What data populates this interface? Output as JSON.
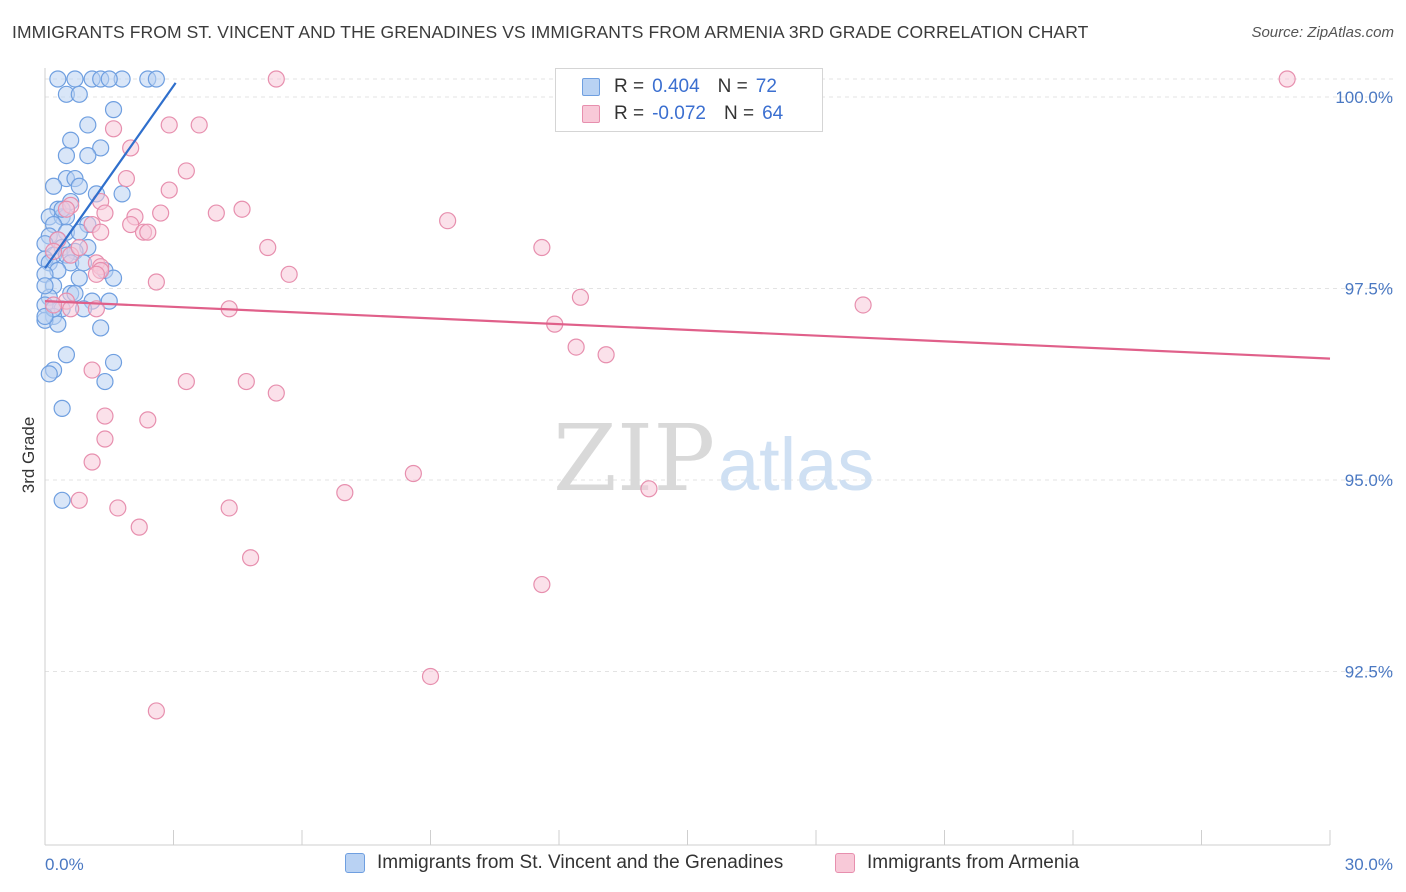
{
  "title": "IMMIGRANTS FROM ST. VINCENT AND THE GRENADINES VS IMMIGRANTS FROM ARMENIA 3RD GRADE CORRELATION CHART",
  "source": "Source: ZipAtlas.com",
  "watermark": {
    "zip": "ZIP",
    "atlas": "atlas"
  },
  "legend": {
    "r_label": "R =",
    "n_label": "N =",
    "rows": [
      {
        "r": "0.404",
        "n": "72",
        "color": "#6f9fe0",
        "fill": "#b9d2f3"
      },
      {
        "r": "-0.072",
        "n": "64",
        "color": "#e78fae",
        "fill": "#f8c9d8"
      }
    ]
  },
  "chart_data": {
    "type": "scatter",
    "title": "IMMIGRANTS FROM ST. VINCENT AND THE GRENADINES VS IMMIGRANTS FROM ARMENIA 3RD GRADE CORRELATION CHART",
    "xlabel": "",
    "ylabel": "3rd Grade",
    "xlim": [
      0,
      30
    ],
    "ylim": [
      90.0,
      100.2
    ],
    "x_tick_labels": [
      "0.0%",
      "30.0%"
    ],
    "y_ticks": [
      {
        "value": 100.0,
        "label": "100.0%"
      },
      {
        "value": 97.5,
        "label": "97.5%"
      },
      {
        "value": 95.0,
        "label": "95.0%"
      },
      {
        "value": 92.5,
        "label": "92.5%"
      }
    ],
    "grid": true,
    "series": [
      {
        "name": "Immigrants from St. Vincent and the Grenadines",
        "color": "#6f9fe0",
        "fill": "#b9d2f3",
        "trend": {
          "x": [
            0.0,
            3.05
          ],
          "y": [
            97.53,
            99.95
          ],
          "color": "#2f6fcc"
        },
        "points": [
          [
            0.3,
            100.0
          ],
          [
            0.7,
            100.0
          ],
          [
            1.1,
            100.0
          ],
          [
            1.3,
            100.0
          ],
          [
            1.8,
            100.0
          ],
          [
            2.4,
            100.0
          ],
          [
            2.6,
            100.0
          ],
          [
            1.5,
            100.0
          ],
          [
            0.5,
            99.8
          ],
          [
            0.8,
            99.8
          ],
          [
            1.6,
            99.6
          ],
          [
            1.0,
            99.4
          ],
          [
            0.6,
            99.2
          ],
          [
            1.3,
            99.1
          ],
          [
            0.5,
            99.0
          ],
          [
            1.0,
            99.0
          ],
          [
            0.5,
            98.7
          ],
          [
            0.7,
            98.7
          ],
          [
            0.2,
            98.6
          ],
          [
            1.2,
            98.5
          ],
          [
            1.8,
            98.5
          ],
          [
            0.6,
            98.4
          ],
          [
            0.3,
            98.3
          ],
          [
            0.1,
            98.2
          ],
          [
            0.4,
            98.2
          ],
          [
            0.5,
            98.2
          ],
          [
            1.0,
            98.1
          ],
          [
            0.2,
            98.1
          ],
          [
            0.5,
            98.0
          ],
          [
            0.8,
            98.0
          ],
          [
            0.1,
            97.95
          ],
          [
            0.3,
            97.9
          ],
          [
            0.0,
            97.85
          ],
          [
            0.4,
            97.8
          ],
          [
            1.0,
            97.8
          ],
          [
            0.7,
            97.75
          ],
          [
            0.2,
            97.7
          ],
          [
            0.5,
            97.7
          ],
          [
            0.0,
            97.65
          ],
          [
            0.1,
            97.6
          ],
          [
            0.6,
            97.6
          ],
          [
            0.9,
            97.6
          ],
          [
            1.4,
            97.5
          ],
          [
            0.3,
            97.5
          ],
          [
            0.0,
            97.45
          ],
          [
            1.6,
            97.4
          ],
          [
            0.8,
            97.4
          ],
          [
            0.2,
            97.3
          ],
          [
            0.6,
            97.2
          ],
          [
            0.1,
            97.15
          ],
          [
            1.1,
            97.1
          ],
          [
            1.5,
            97.1
          ],
          [
            0.0,
            97.05
          ],
          [
            0.9,
            97.0
          ],
          [
            0.4,
            97.0
          ],
          [
            0.2,
            96.9
          ],
          [
            0.0,
            96.85
          ],
          [
            0.3,
            96.8
          ],
          [
            1.3,
            96.75
          ],
          [
            0.5,
            96.4
          ],
          [
            1.6,
            96.3
          ],
          [
            0.2,
            96.2
          ],
          [
            0.1,
            96.15
          ],
          [
            1.4,
            96.05
          ],
          [
            0.4,
            95.7
          ],
          [
            0.4,
            94.5
          ],
          [
            0.0,
            97.3
          ],
          [
            0.7,
            97.2
          ],
          [
            0.2,
            97.0
          ],
          [
            0.0,
            96.9
          ],
          [
            0.8,
            98.6
          ],
          [
            0.4,
            98.3
          ]
        ]
      },
      {
        "name": "Immigrants from Armenia",
        "color": "#e78fae",
        "fill": "#f8c9d8",
        "trend": {
          "x": [
            0.0,
            30.0
          ],
          "y": [
            97.1,
            96.35
          ],
          "color": "#e0608a"
        },
        "points": [
          [
            5.4,
            100.0
          ],
          [
            29.0,
            100.0
          ],
          [
            2.9,
            99.4
          ],
          [
            3.6,
            99.4
          ],
          [
            1.6,
            99.35
          ],
          [
            2.0,
            99.1
          ],
          [
            3.3,
            98.8
          ],
          [
            1.9,
            98.7
          ],
          [
            2.9,
            98.55
          ],
          [
            1.3,
            98.4
          ],
          [
            0.6,
            98.35
          ],
          [
            0.5,
            98.3
          ],
          [
            1.4,
            98.25
          ],
          [
            4.6,
            98.3
          ],
          [
            4.0,
            98.25
          ],
          [
            2.1,
            98.2
          ],
          [
            2.7,
            98.25
          ],
          [
            1.1,
            98.1
          ],
          [
            9.4,
            98.15
          ],
          [
            2.0,
            98.1
          ],
          [
            2.3,
            98.0
          ],
          [
            0.3,
            97.9
          ],
          [
            5.2,
            97.8
          ],
          [
            11.6,
            97.8
          ],
          [
            0.2,
            97.75
          ],
          [
            0.6,
            97.7
          ],
          [
            1.2,
            97.6
          ],
          [
            1.3,
            97.55
          ],
          [
            1.3,
            97.5
          ],
          [
            5.7,
            97.45
          ],
          [
            1.2,
            97.45
          ],
          [
            2.6,
            97.35
          ],
          [
            12.5,
            97.15
          ],
          [
            0.5,
            97.1
          ],
          [
            0.2,
            97.05
          ],
          [
            19.1,
            97.05
          ],
          [
            4.3,
            97.0
          ],
          [
            1.2,
            97.0
          ],
          [
            0.6,
            97.0
          ],
          [
            11.9,
            96.8
          ],
          [
            12.4,
            96.5
          ],
          [
            13.1,
            96.4
          ],
          [
            1.1,
            96.2
          ],
          [
            3.3,
            96.05
          ],
          [
            4.7,
            96.05
          ],
          [
            5.4,
            95.9
          ],
          [
            1.4,
            95.6
          ],
          [
            2.4,
            95.55
          ],
          [
            1.4,
            95.3
          ],
          [
            1.1,
            95.0
          ],
          [
            8.6,
            94.85
          ],
          [
            14.1,
            94.65
          ],
          [
            7.0,
            94.6
          ],
          [
            0.8,
            94.5
          ],
          [
            4.3,
            94.4
          ],
          [
            1.7,
            94.4
          ],
          [
            2.2,
            94.15
          ],
          [
            4.8,
            93.75
          ],
          [
            11.6,
            93.4
          ],
          [
            9.0,
            92.2
          ],
          [
            2.6,
            91.75
          ],
          [
            1.3,
            98.0
          ],
          [
            0.8,
            97.8
          ],
          [
            2.4,
            98.0
          ]
        ]
      }
    ]
  },
  "bottom_legend": [
    {
      "label": "Immigrants from St. Vincent and the Grenadines",
      "color": "#6f9fe0",
      "fill": "#b9d2f3"
    },
    {
      "label": "Immigrants from Armenia",
      "color": "#e78fae",
      "fill": "#f8c9d8"
    }
  ]
}
